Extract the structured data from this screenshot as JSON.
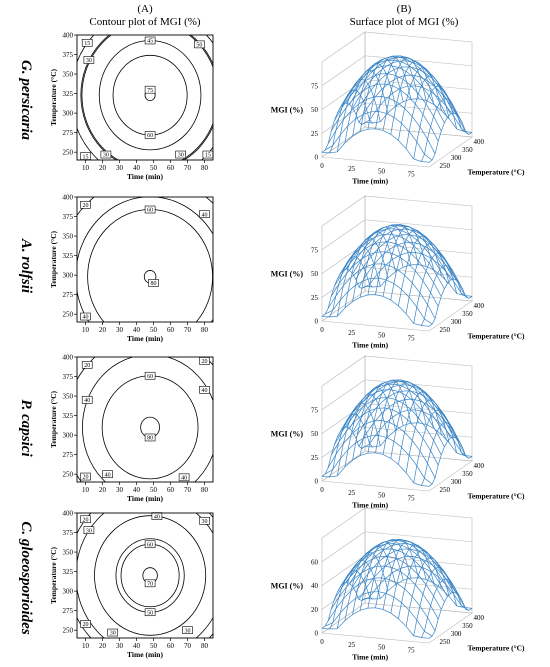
{
  "header": {
    "col_a": "(A)",
    "col_b": "(B)",
    "contour_title": "Contour plot of MGI (%)",
    "surface_title": "Surface plot of MGI (%)"
  },
  "species": [
    "G. persicaria",
    "A. rolfsii",
    "P. capsici",
    "C. gloeosporioides"
  ],
  "contour_axes": {
    "xlabel": "Time (min)",
    "ylabel": "Temperature (°C)",
    "xticks": [
      "10",
      "20",
      "30",
      "40",
      "50",
      "60",
      "70",
      "80"
    ],
    "yticks": [
      "400",
      "375",
      "350",
      "325",
      "300",
      "275",
      "250"
    ]
  },
  "surface_axes": {
    "xlabel": "Time (min)",
    "ylabel": "Temperature (°C)",
    "zlabel": "MGI (%)",
    "xticks": [
      "0",
      "25",
      "50",
      "75"
    ],
    "yticks": [
      "250",
      "300",
      "350",
      "400"
    ]
  },
  "colors": {
    "surface": "#3a85c6",
    "contour": "#000000"
  },
  "chart_data": [
    {
      "type": "contour",
      "panel": "A",
      "species": "G. persicaria",
      "xlim": [
        5,
        85
      ],
      "ylim": [
        240,
        400
      ],
      "center": [
        48,
        323
      ],
      "contour_levels": [
        {
          "label": "15",
          "positions": [
            [
              11,
              390
            ],
            [
              10,
              245
            ],
            [
              82,
              247
            ]
          ]
        },
        {
          "label": "30",
          "positions": [
            [
              12,
              368
            ],
            [
              22,
              247
            ],
            [
              66,
              247
            ]
          ]
        },
        {
          "label": "45",
          "positions": [
            [
              48,
              393
            ]
          ]
        },
        {
          "label": "50",
          "positions": [
            [
              77,
              388
            ]
          ]
        },
        {
          "label": "60",
          "positions": [
            [
              48,
              272
            ]
          ]
        },
        {
          "label": "75",
          "positions": [
            [
              48,
              330
            ]
          ]
        }
      ]
    },
    {
      "type": "surface",
      "panel": "B",
      "species": "G. persicaria",
      "xlim": [
        0,
        90
      ],
      "ylim": [
        230,
        420
      ],
      "zticks": [
        "0",
        "25",
        "50",
        "75"
      ]
    },
    {
      "type": "contour",
      "panel": "A",
      "species": "A. rolfsii",
      "xlim": [
        5,
        85
      ],
      "ylim": [
        240,
        400
      ],
      "center": [
        48,
        298
      ],
      "contour_levels": [
        {
          "label": "20",
          "positions": [
            [
              10,
              390
            ]
          ]
        },
        {
          "label": "40",
          "positions": [
            [
              10,
              247
            ],
            [
              80,
              378
            ]
          ]
        },
        {
          "label": "60",
          "positions": [
            [
              48,
              384
            ]
          ]
        },
        {
          "label": "80",
          "positions": [
            [
              50,
              290
            ]
          ]
        }
      ]
    },
    {
      "type": "surface",
      "panel": "B",
      "species": "A. rolfsii",
      "xlim": [
        0,
        90
      ],
      "ylim": [
        230,
        420
      ],
      "zticks": [
        "0",
        "25",
        "50",
        "75"
      ]
    },
    {
      "type": "contour",
      "panel": "A",
      "species": "P. capsici",
      "xlim": [
        5,
        85
      ],
      "ylim": [
        240,
        400
      ],
      "center": [
        48,
        310
      ],
      "contour_levels": [
        {
          "label": "20",
          "positions": [
            [
              11,
              390
            ],
            [
              80,
              395
            ],
            [
              10,
              247
            ]
          ]
        },
        {
          "label": "40",
          "positions": [
            [
              11,
              345
            ],
            [
              80,
              358
            ],
            [
              23,
              250
            ],
            [
              68,
              246
            ]
          ]
        },
        {
          "label": "60",
          "positions": [
            [
              48,
              376
            ]
          ]
        },
        {
          "label": "80",
          "positions": [
            [
              48,
              297
            ]
          ]
        }
      ]
    },
    {
      "type": "surface",
      "panel": "B",
      "species": "P. capsici",
      "xlim": [
        0,
        90
      ],
      "ylim": [
        230,
        420
      ],
      "zticks": [
        "0",
        "25",
        "50",
        "75"
      ]
    },
    {
      "type": "contour",
      "panel": "A",
      "species": "C. gloeosporioides",
      "xlim": [
        5,
        85
      ],
      "ylim": [
        240,
        400
      ],
      "center": [
        48,
        320
      ],
      "contour_levels": [
        {
          "label": "20",
          "positions": [
            [
              10,
              392
            ],
            [
              10,
              258
            ]
          ]
        },
        {
          "label": "30",
          "positions": [
            [
              12,
              378
            ],
            [
              80,
              390
            ],
            [
              26,
              247
            ],
            [
              70,
              250
            ]
          ]
        },
        {
          "label": "40",
          "positions": [
            [
              52,
              396
            ]
          ]
        },
        {
          "label": "50",
          "positions": [
            [
              48,
              273
            ]
          ]
        },
        {
          "label": "60",
          "positions": [
            [
              48,
              360
            ]
          ]
        },
        {
          "label": "70",
          "positions": [
            [
              48,
              310
            ]
          ]
        }
      ]
    },
    {
      "type": "surface",
      "panel": "B",
      "species": "C. gloeosporioides",
      "xlim": [
        0,
        90
      ],
      "ylim": [
        230,
        420
      ],
      "zticks": [
        "0",
        "20",
        "40",
        "60"
      ]
    }
  ]
}
